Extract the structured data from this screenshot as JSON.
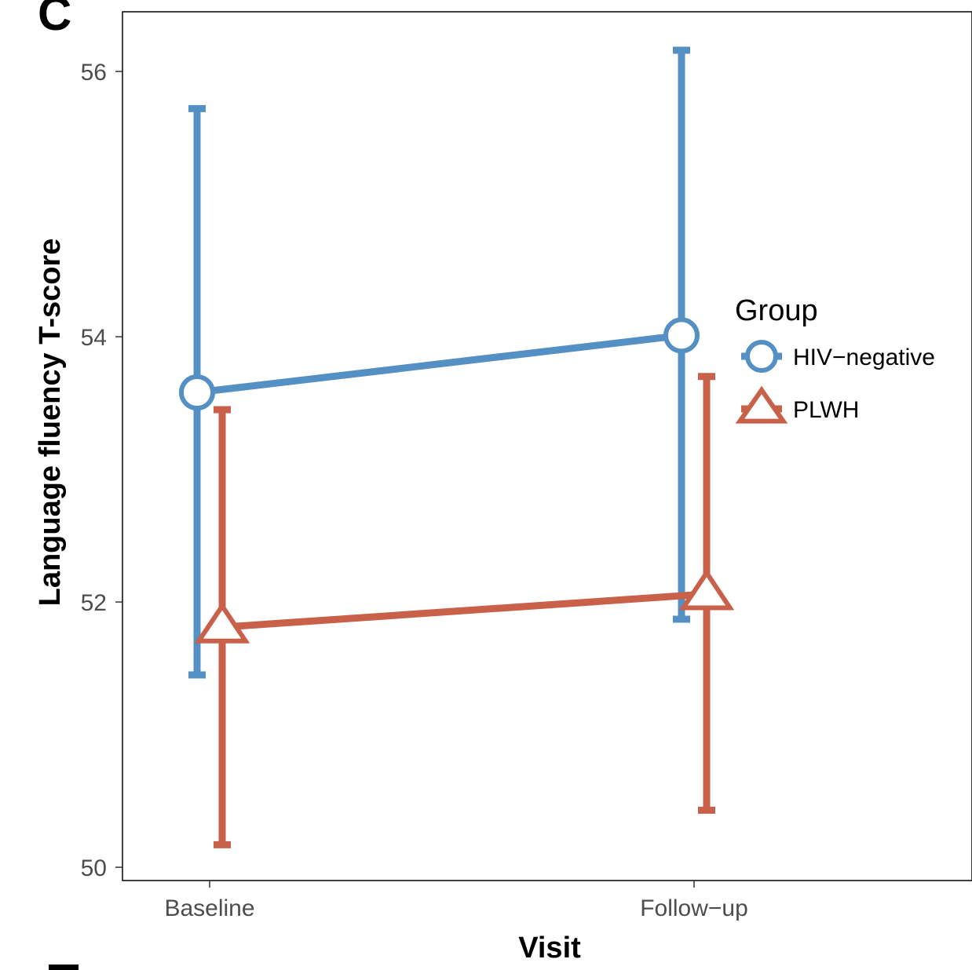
{
  "panel_letter": "C",
  "chart_data": {
    "type": "line",
    "xlabel": "Visit",
    "ylabel": "Language fluency T-score",
    "categories": [
      "Baseline",
      "Follow−up"
    ],
    "ylim": [
      49.9,
      56.45
    ],
    "yticks": [
      50,
      52,
      54,
      56
    ],
    "grid": false,
    "legend": {
      "title": "Group",
      "position": "right"
    },
    "series": [
      {
        "name": "HIV−negative",
        "marker": "circle",
        "color": "#5590c4",
        "values": [
          53.58,
          54.01
        ],
        "ci_lower": [
          51.45,
          51.87
        ],
        "ci_upper": [
          55.72,
          56.16
        ]
      },
      {
        "name": "PLWH",
        "marker": "triangle",
        "color": "#c8604a",
        "values": [
          51.81,
          52.06
        ],
        "ci_lower": [
          50.17,
          50.43
        ],
        "ci_upper": [
          53.45,
          53.7
        ]
      }
    ]
  }
}
